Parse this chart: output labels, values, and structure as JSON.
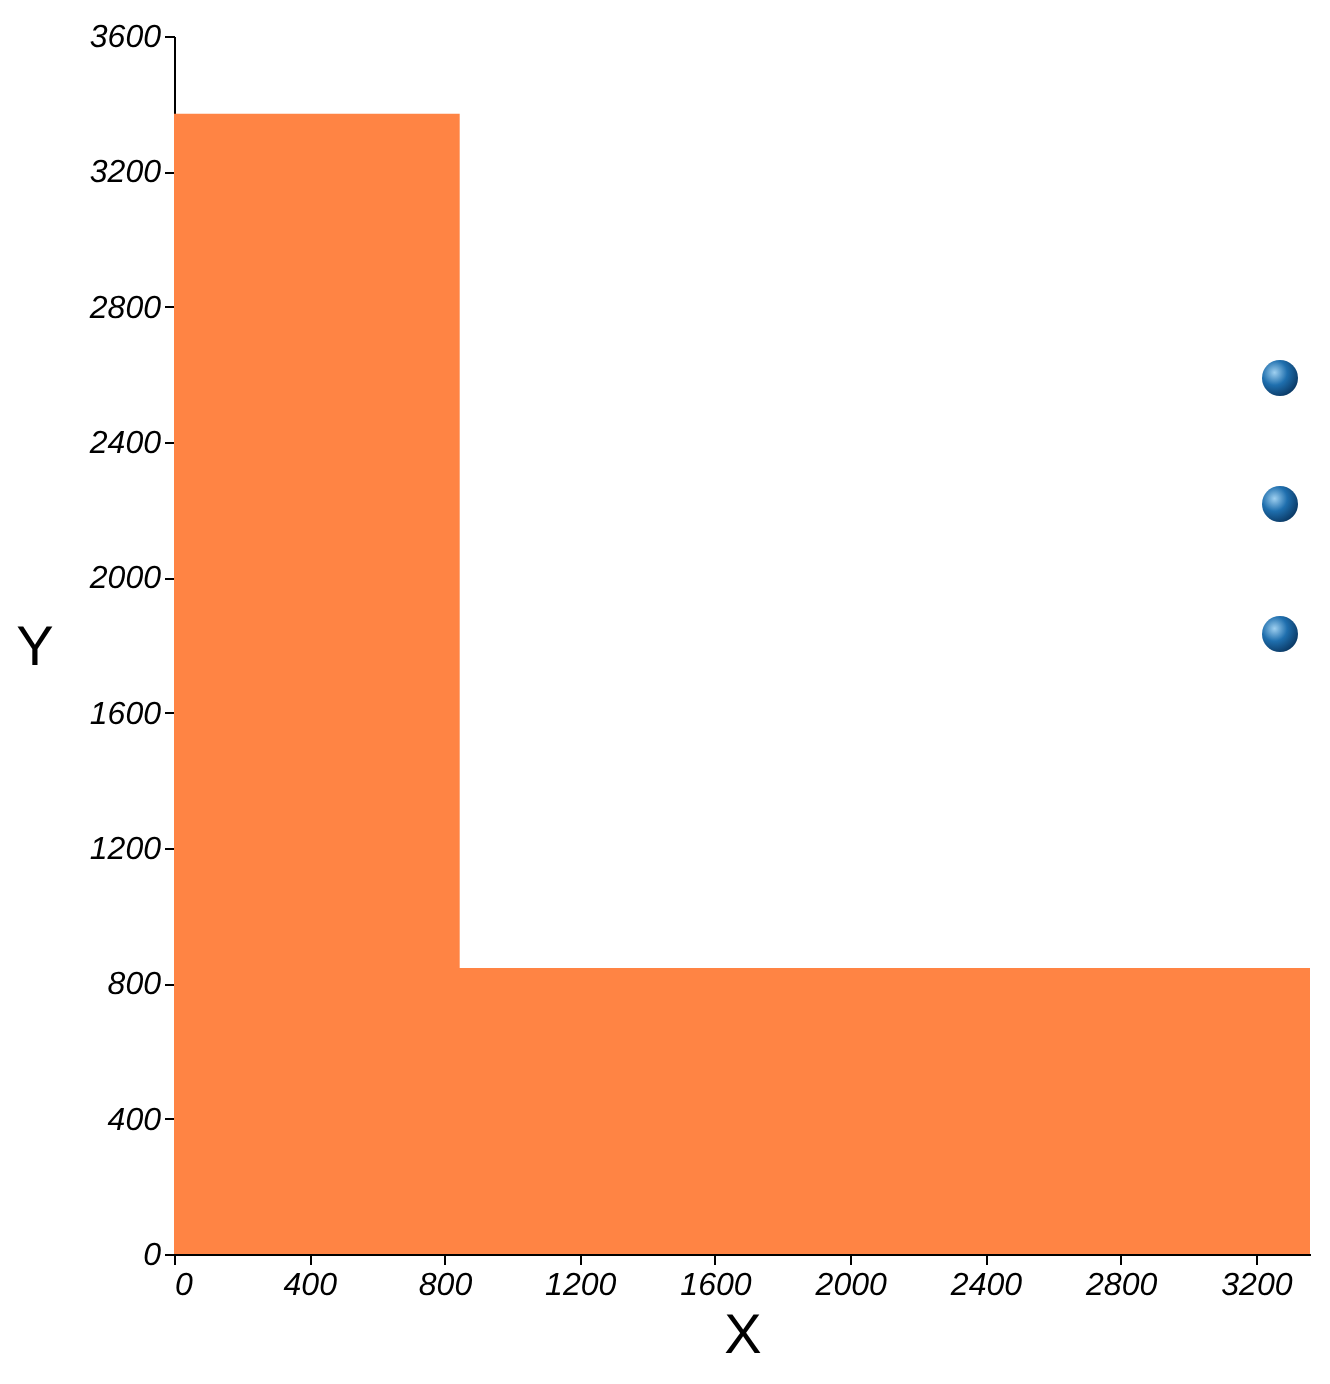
{
  "chart_data": {
    "type": "area",
    "xlabel": "X",
    "ylabel": "Y",
    "x": [
      0,
      845,
      845,
      3360
    ],
    "series": [
      {
        "color": "#ff8444",
        "values": [
          3370,
          3370,
          845,
          845
        ]
      }
    ],
    "xlim": [
      0,
      3360
    ],
    "xticks": [
      0,
      400,
      800,
      1200,
      1600,
      2000,
      2400,
      2800,
      3200
    ],
    "ylim": [
      0,
      3600
    ],
    "yticks": [
      0,
      400,
      800,
      1200,
      1600,
      2000,
      2400,
      2800,
      3200,
      3600
    ],
    "grid": false
  }
}
